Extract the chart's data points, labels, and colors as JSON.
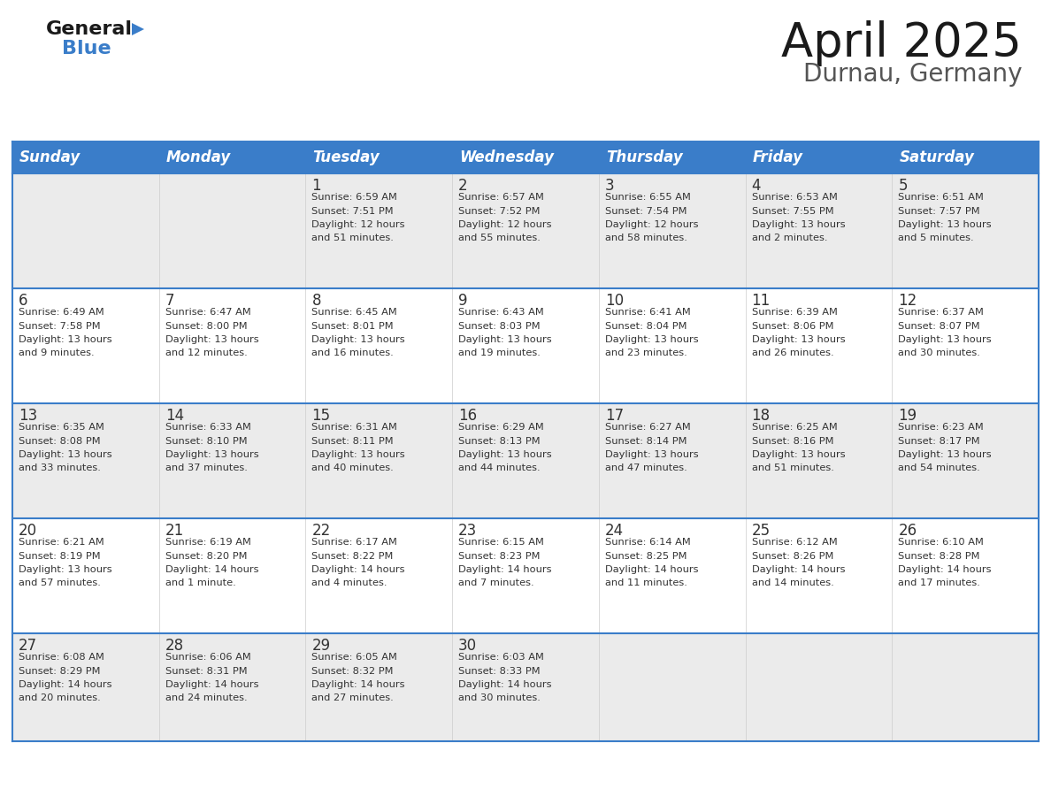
{
  "title": "April 2025",
  "subtitle": "Durnau, Germany",
  "header_bg": "#3A7DC9",
  "header_text_color": "#FFFFFF",
  "day_names": [
    "Sunday",
    "Monday",
    "Tuesday",
    "Wednesday",
    "Thursday",
    "Friday",
    "Saturday"
  ],
  "row_bg_odd": "#EBEBEB",
  "row_bg_even": "#FFFFFF",
  "cell_border_color": "#3A7DC9",
  "number_color": "#333333",
  "text_color": "#333333",
  "title_color": "#1a1a1a",
  "subtitle_color": "#555555",
  "logo_general_color": "#1a1a1a",
  "logo_blue_color": "#3A7DC9",
  "logo_triangle_color": "#3A7DC9",
  "calendar": [
    [
      {
        "day": "",
        "info": ""
      },
      {
        "day": "",
        "info": ""
      },
      {
        "day": "1",
        "info": "Sunrise: 6:59 AM\nSunset: 7:51 PM\nDaylight: 12 hours\nand 51 minutes."
      },
      {
        "day": "2",
        "info": "Sunrise: 6:57 AM\nSunset: 7:52 PM\nDaylight: 12 hours\nand 55 minutes."
      },
      {
        "day": "3",
        "info": "Sunrise: 6:55 AM\nSunset: 7:54 PM\nDaylight: 12 hours\nand 58 minutes."
      },
      {
        "day": "4",
        "info": "Sunrise: 6:53 AM\nSunset: 7:55 PM\nDaylight: 13 hours\nand 2 minutes."
      },
      {
        "day": "5",
        "info": "Sunrise: 6:51 AM\nSunset: 7:57 PM\nDaylight: 13 hours\nand 5 minutes."
      }
    ],
    [
      {
        "day": "6",
        "info": "Sunrise: 6:49 AM\nSunset: 7:58 PM\nDaylight: 13 hours\nand 9 minutes."
      },
      {
        "day": "7",
        "info": "Sunrise: 6:47 AM\nSunset: 8:00 PM\nDaylight: 13 hours\nand 12 minutes."
      },
      {
        "day": "8",
        "info": "Sunrise: 6:45 AM\nSunset: 8:01 PM\nDaylight: 13 hours\nand 16 minutes."
      },
      {
        "day": "9",
        "info": "Sunrise: 6:43 AM\nSunset: 8:03 PM\nDaylight: 13 hours\nand 19 minutes."
      },
      {
        "day": "10",
        "info": "Sunrise: 6:41 AM\nSunset: 8:04 PM\nDaylight: 13 hours\nand 23 minutes."
      },
      {
        "day": "11",
        "info": "Sunrise: 6:39 AM\nSunset: 8:06 PM\nDaylight: 13 hours\nand 26 minutes."
      },
      {
        "day": "12",
        "info": "Sunrise: 6:37 AM\nSunset: 8:07 PM\nDaylight: 13 hours\nand 30 minutes."
      }
    ],
    [
      {
        "day": "13",
        "info": "Sunrise: 6:35 AM\nSunset: 8:08 PM\nDaylight: 13 hours\nand 33 minutes."
      },
      {
        "day": "14",
        "info": "Sunrise: 6:33 AM\nSunset: 8:10 PM\nDaylight: 13 hours\nand 37 minutes."
      },
      {
        "day": "15",
        "info": "Sunrise: 6:31 AM\nSunset: 8:11 PM\nDaylight: 13 hours\nand 40 minutes."
      },
      {
        "day": "16",
        "info": "Sunrise: 6:29 AM\nSunset: 8:13 PM\nDaylight: 13 hours\nand 44 minutes."
      },
      {
        "day": "17",
        "info": "Sunrise: 6:27 AM\nSunset: 8:14 PM\nDaylight: 13 hours\nand 47 minutes."
      },
      {
        "day": "18",
        "info": "Sunrise: 6:25 AM\nSunset: 8:16 PM\nDaylight: 13 hours\nand 51 minutes."
      },
      {
        "day": "19",
        "info": "Sunrise: 6:23 AM\nSunset: 8:17 PM\nDaylight: 13 hours\nand 54 minutes."
      }
    ],
    [
      {
        "day": "20",
        "info": "Sunrise: 6:21 AM\nSunset: 8:19 PM\nDaylight: 13 hours\nand 57 minutes."
      },
      {
        "day": "21",
        "info": "Sunrise: 6:19 AM\nSunset: 8:20 PM\nDaylight: 14 hours\nand 1 minute."
      },
      {
        "day": "22",
        "info": "Sunrise: 6:17 AM\nSunset: 8:22 PM\nDaylight: 14 hours\nand 4 minutes."
      },
      {
        "day": "23",
        "info": "Sunrise: 6:15 AM\nSunset: 8:23 PM\nDaylight: 14 hours\nand 7 minutes."
      },
      {
        "day": "24",
        "info": "Sunrise: 6:14 AM\nSunset: 8:25 PM\nDaylight: 14 hours\nand 11 minutes."
      },
      {
        "day": "25",
        "info": "Sunrise: 6:12 AM\nSunset: 8:26 PM\nDaylight: 14 hours\nand 14 minutes."
      },
      {
        "day": "26",
        "info": "Sunrise: 6:10 AM\nSunset: 8:28 PM\nDaylight: 14 hours\nand 17 minutes."
      }
    ],
    [
      {
        "day": "27",
        "info": "Sunrise: 6:08 AM\nSunset: 8:29 PM\nDaylight: 14 hours\nand 20 minutes."
      },
      {
        "day": "28",
        "info": "Sunrise: 6:06 AM\nSunset: 8:31 PM\nDaylight: 14 hours\nand 24 minutes."
      },
      {
        "day": "29",
        "info": "Sunrise: 6:05 AM\nSunset: 8:32 PM\nDaylight: 14 hours\nand 27 minutes."
      },
      {
        "day": "30",
        "info": "Sunrise: 6:03 AM\nSunset: 8:33 PM\nDaylight: 14 hours\nand 30 minutes."
      },
      {
        "day": "",
        "info": ""
      },
      {
        "day": "",
        "info": ""
      },
      {
        "day": "",
        "info": ""
      }
    ]
  ]
}
